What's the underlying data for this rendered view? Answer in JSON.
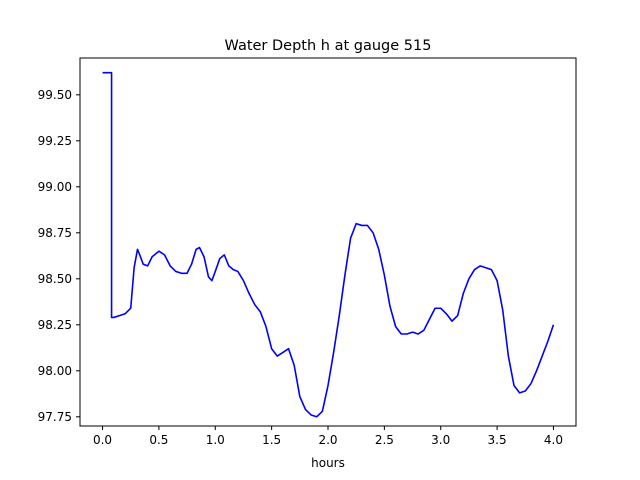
{
  "chart_data": {
    "type": "line",
    "title": "Water Depth h at gauge 515",
    "xlabel": "hours",
    "ylabel": "",
    "xlim": [
      -0.2,
      4.2
    ],
    "ylim": [
      97.7,
      99.7
    ],
    "x_ticks": [
      0.0,
      0.5,
      1.0,
      1.5,
      2.0,
      2.5,
      3.0,
      3.5,
      4.0
    ],
    "x_tick_labels": [
      "0.0",
      "0.5",
      "1.0",
      "1.5",
      "2.0",
      "2.5",
      "3.0",
      "3.5",
      "4.0"
    ],
    "y_ticks": [
      97.75,
      98.0,
      98.25,
      98.5,
      98.75,
      99.0,
      99.25,
      99.5
    ],
    "y_tick_labels": [
      "97.75",
      "98.00",
      "98.25",
      "98.50",
      "98.75",
      "99.00",
      "99.25",
      "99.50"
    ],
    "grid": false,
    "line_color": "#0000ff",
    "series": [
      {
        "x": [
          0.0,
          0.08,
          0.08,
          0.1,
          0.15,
          0.2,
          0.25,
          0.28,
          0.31,
          0.33,
          0.36,
          0.4,
          0.44,
          0.5,
          0.55,
          0.6,
          0.65,
          0.7,
          0.75,
          0.79,
          0.83,
          0.86,
          0.9,
          0.94,
          0.97,
          1.0,
          1.04,
          1.08,
          1.12,
          1.16,
          1.2,
          1.25,
          1.3,
          1.35,
          1.4,
          1.45,
          1.5,
          1.55,
          1.6,
          1.65,
          1.7,
          1.75,
          1.8,
          1.85,
          1.9,
          1.95,
          2.0,
          2.05,
          2.1,
          2.15,
          2.2,
          2.25,
          2.3,
          2.35,
          2.4,
          2.45,
          2.5,
          2.55,
          2.6,
          2.65,
          2.7,
          2.75,
          2.8,
          2.85,
          2.9,
          2.95,
          3.0,
          3.05,
          3.1,
          3.15,
          3.2,
          3.25,
          3.3,
          3.35,
          3.4,
          3.45,
          3.5,
          3.55,
          3.6,
          3.65,
          3.7,
          3.75,
          3.8,
          3.85,
          3.9,
          3.95,
          4.0
        ],
        "y": [
          99.62,
          99.62,
          98.29,
          98.29,
          98.3,
          98.31,
          98.34,
          98.56,
          98.66,
          98.63,
          98.58,
          98.57,
          98.62,
          98.65,
          98.63,
          98.57,
          98.54,
          98.53,
          98.53,
          98.58,
          98.66,
          98.67,
          98.62,
          98.51,
          98.49,
          98.54,
          98.61,
          98.63,
          98.57,
          98.55,
          98.54,
          98.49,
          98.42,
          98.36,
          98.32,
          98.24,
          98.12,
          98.08,
          98.1,
          98.12,
          98.03,
          97.86,
          97.79,
          97.76,
          97.75,
          97.78,
          97.92,
          98.1,
          98.3,
          98.52,
          98.72,
          98.8,
          98.79,
          98.79,
          98.75,
          98.66,
          98.52,
          98.35,
          98.24,
          98.2,
          98.2,
          98.21,
          98.2,
          98.22,
          98.28,
          98.34,
          98.34,
          98.31,
          98.27,
          98.3,
          98.42,
          98.5,
          98.55,
          98.57,
          98.56,
          98.55,
          98.49,
          98.33,
          98.08,
          97.92,
          97.88,
          97.89,
          97.93,
          98.0,
          98.08,
          98.16,
          98.25
        ]
      }
    ]
  }
}
